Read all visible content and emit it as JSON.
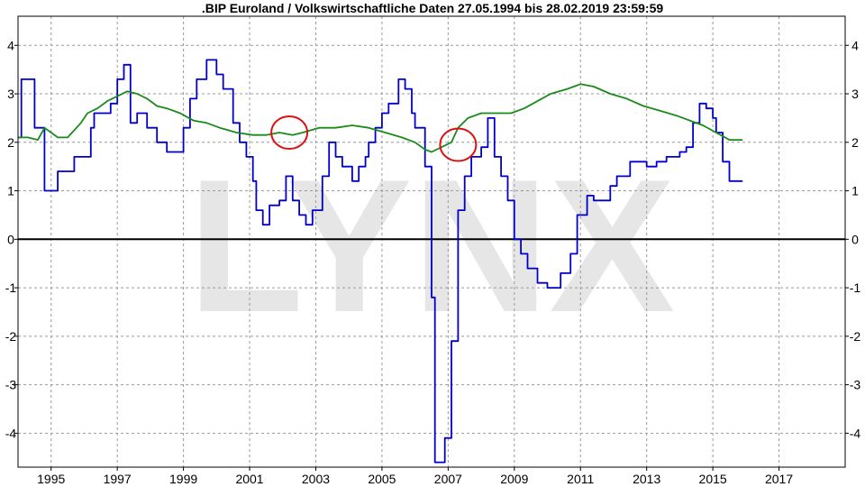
{
  "chart_data": {
    "type": "line",
    "title": ".BIP Euroland / Volkswirtschaftliche Daten 27.05.1994 bis 28.02.2019 23:59:59",
    "watermark": "LYNX",
    "xlabel": "",
    "ylabel": "",
    "xlim": [
      1994.0,
      2019.0
    ],
    "ylim": [
      -4.7,
      4.6
    ],
    "x_ticks": [
      1995,
      1997,
      1999,
      2001,
      2003,
      2005,
      2007,
      2009,
      2011,
      2013,
      2015,
      2017
    ],
    "y_ticks": [
      4,
      3,
      2,
      1,
      0,
      -1,
      -2,
      -3,
      -4
    ],
    "grid": true,
    "legend": "none",
    "zero_line": true,
    "series": [
      {
        "color": "#0000cc",
        "points": [
          [
            1994.0,
            2.1
          ],
          [
            1994.1,
            2.1
          ],
          [
            1994.1,
            3.3
          ],
          [
            1994.5,
            3.3
          ],
          [
            1994.5,
            2.3
          ],
          [
            1994.8,
            2.3
          ],
          [
            1994.8,
            1.0
          ],
          [
            1995.2,
            1.0
          ],
          [
            1995.2,
            1.4
          ],
          [
            1995.7,
            1.4
          ],
          [
            1995.7,
            1.7
          ],
          [
            1996.2,
            1.7
          ],
          [
            1996.2,
            2.3
          ],
          [
            1996.3,
            2.3
          ],
          [
            1996.3,
            2.6
          ],
          [
            1996.8,
            2.6
          ],
          [
            1996.8,
            2.8
          ],
          [
            1997.0,
            2.8
          ],
          [
            1997.0,
            3.3
          ],
          [
            1997.2,
            3.3
          ],
          [
            1997.2,
            3.6
          ],
          [
            1997.4,
            3.6
          ],
          [
            1997.4,
            2.4
          ],
          [
            1997.6,
            2.4
          ],
          [
            1997.6,
            2.6
          ],
          [
            1997.9,
            2.6
          ],
          [
            1997.9,
            2.3
          ],
          [
            1998.2,
            2.3
          ],
          [
            1998.2,
            2.0
          ],
          [
            1998.5,
            2.0
          ],
          [
            1998.5,
            1.8
          ],
          [
            1999.0,
            1.8
          ],
          [
            1999.0,
            2.3
          ],
          [
            1999.2,
            2.3
          ],
          [
            1999.2,
            2.9
          ],
          [
            1999.4,
            2.9
          ],
          [
            1999.4,
            3.3
          ],
          [
            1999.7,
            3.3
          ],
          [
            1999.7,
            3.7
          ],
          [
            2000.0,
            3.7
          ],
          [
            2000.0,
            3.4
          ],
          [
            2000.2,
            3.4
          ],
          [
            2000.2,
            3.1
          ],
          [
            2000.5,
            3.1
          ],
          [
            2000.5,
            2.4
          ],
          [
            2000.7,
            2.4
          ],
          [
            2000.7,
            2.0
          ],
          [
            2000.9,
            2.0
          ],
          [
            2000.9,
            1.7
          ],
          [
            2001.1,
            1.7
          ],
          [
            2001.1,
            1.2
          ],
          [
            2001.2,
            1.2
          ],
          [
            2001.2,
            0.6
          ],
          [
            2001.4,
            0.6
          ],
          [
            2001.4,
            0.3
          ],
          [
            2001.6,
            0.3
          ],
          [
            2001.6,
            0.7
          ],
          [
            2001.9,
            0.7
          ],
          [
            2001.9,
            0.8
          ],
          [
            2002.1,
            0.8
          ],
          [
            2002.1,
            1.3
          ],
          [
            2002.3,
            1.3
          ],
          [
            2002.3,
            0.8
          ],
          [
            2002.5,
            0.8
          ],
          [
            2002.5,
            0.5
          ],
          [
            2002.7,
            0.5
          ],
          [
            2002.7,
            0.3
          ],
          [
            2002.9,
            0.3
          ],
          [
            2002.9,
            0.6
          ],
          [
            2003.2,
            0.6
          ],
          [
            2003.2,
            1.3
          ],
          [
            2003.4,
            1.3
          ],
          [
            2003.4,
            2.0
          ],
          [
            2003.6,
            2.0
          ],
          [
            2003.6,
            1.7
          ],
          [
            2003.8,
            1.7
          ],
          [
            2003.8,
            1.5
          ],
          [
            2004.1,
            1.5
          ],
          [
            2004.1,
            1.2
          ],
          [
            2004.3,
            1.2
          ],
          [
            2004.3,
            1.5
          ],
          [
            2004.5,
            1.5
          ],
          [
            2004.5,
            1.7
          ],
          [
            2004.6,
            1.7
          ],
          [
            2004.6,
            2.0
          ],
          [
            2004.8,
            2.0
          ],
          [
            2004.8,
            2.3
          ],
          [
            2005.0,
            2.3
          ],
          [
            2005.0,
            2.6
          ],
          [
            2005.2,
            2.6
          ],
          [
            2005.2,
            2.8
          ],
          [
            2005.5,
            2.8
          ],
          [
            2005.5,
            3.3
          ],
          [
            2005.7,
            3.3
          ],
          [
            2005.7,
            3.1
          ],
          [
            2005.9,
            3.1
          ],
          [
            2005.9,
            2.6
          ],
          [
            2006.0,
            2.6
          ],
          [
            2006.0,
            2.3
          ],
          [
            2006.3,
            2.3
          ],
          [
            2006.3,
            1.5
          ],
          [
            2006.5,
            1.5
          ],
          [
            2006.5,
            -1.2
          ],
          [
            2006.6,
            -1.2
          ],
          [
            2006.6,
            -4.6
          ],
          [
            2006.9,
            -4.6
          ],
          [
            2006.9,
            -4.1
          ],
          [
            2007.1,
            -4.1
          ],
          [
            2007.1,
            -2.1
          ],
          [
            2007.3,
            -2.1
          ],
          [
            2007.3,
            0.6
          ],
          [
            2007.5,
            0.6
          ],
          [
            2007.5,
            1.3
          ],
          [
            2007.7,
            1.3
          ],
          [
            2007.7,
            1.7
          ],
          [
            2008.0,
            1.7
          ],
          [
            2008.0,
            1.9
          ],
          [
            2008.2,
            1.9
          ],
          [
            2008.2,
            2.5
          ],
          [
            2008.4,
            2.5
          ],
          [
            2008.4,
            1.7
          ],
          [
            2008.6,
            1.7
          ],
          [
            2008.6,
            1.3
          ],
          [
            2008.8,
            1.3
          ],
          [
            2008.8,
            0.8
          ],
          [
            2009.0,
            0.8
          ],
          [
            2009.0,
            0.0
          ],
          [
            2009.2,
            0.0
          ],
          [
            2009.2,
            -0.3
          ],
          [
            2009.4,
            -0.3
          ],
          [
            2009.4,
            -0.6
          ],
          [
            2009.7,
            -0.6
          ],
          [
            2009.7,
            -0.9
          ],
          [
            2010.0,
            -0.9
          ],
          [
            2010.0,
            -1.0
          ],
          [
            2010.4,
            -1.0
          ],
          [
            2010.4,
            -0.7
          ],
          [
            2010.7,
            -0.7
          ],
          [
            2010.7,
            -0.3
          ],
          [
            2010.9,
            -0.3
          ],
          [
            2010.9,
            0.5
          ],
          [
            2011.2,
            0.5
          ],
          [
            2011.2,
            0.9
          ],
          [
            2011.4,
            0.9
          ],
          [
            2011.4,
            0.8
          ],
          [
            2011.9,
            0.8
          ],
          [
            2011.9,
            1.1
          ],
          [
            2012.1,
            1.1
          ],
          [
            2012.1,
            1.3
          ],
          [
            2012.5,
            1.3
          ],
          [
            2012.5,
            1.6
          ],
          [
            2013.0,
            1.6
          ],
          [
            2013.0,
            1.5
          ],
          [
            2013.3,
            1.5
          ],
          [
            2013.3,
            1.6
          ],
          [
            2013.6,
            1.6
          ],
          [
            2013.6,
            1.7
          ],
          [
            2014.0,
            1.7
          ],
          [
            2014.0,
            1.8
          ],
          [
            2014.2,
            1.8
          ],
          [
            2014.2,
            1.9
          ],
          [
            2014.4,
            1.9
          ],
          [
            2014.4,
            2.4
          ],
          [
            2014.6,
            2.4
          ],
          [
            2014.6,
            2.8
          ],
          [
            2014.8,
            2.8
          ],
          [
            2014.8,
            2.7
          ],
          [
            2015.0,
            2.7
          ],
          [
            2015.0,
            2.5
          ],
          [
            2015.1,
            2.5
          ],
          [
            2015.1,
            2.2
          ],
          [
            2015.3,
            2.2
          ],
          [
            2015.3,
            1.6
          ],
          [
            2015.5,
            1.6
          ],
          [
            2015.5,
            1.2
          ],
          [
            2015.9,
            1.2
          ]
        ]
      },
      {
        "color": "#1a8a1a",
        "points": [
          [
            1994.0,
            2.1
          ],
          [
            1994.3,
            2.1
          ],
          [
            1994.6,
            2.05
          ],
          [
            1994.8,
            2.3
          ],
          [
            1995.2,
            2.1
          ],
          [
            1995.5,
            2.1
          ],
          [
            1995.9,
            2.4
          ],
          [
            1996.1,
            2.6
          ],
          [
            1996.4,
            2.7
          ],
          [
            1996.7,
            2.85
          ],
          [
            1997.0,
            2.95
          ],
          [
            1997.3,
            3.05
          ],
          [
            1997.6,
            3.0
          ],
          [
            1997.9,
            2.9
          ],
          [
            1998.2,
            2.75
          ],
          [
            1998.5,
            2.7
          ],
          [
            1998.9,
            2.6
          ],
          [
            1999.3,
            2.45
          ],
          [
            1999.7,
            2.4
          ],
          [
            2000.1,
            2.3
          ],
          [
            2000.6,
            2.2
          ],
          [
            2001.1,
            2.15
          ],
          [
            2001.5,
            2.15
          ],
          [
            2001.9,
            2.2
          ],
          [
            2002.3,
            2.15
          ],
          [
            2002.6,
            2.2
          ],
          [
            2003.1,
            2.3
          ],
          [
            2003.6,
            2.3
          ],
          [
            2004.1,
            2.35
          ],
          [
            2004.6,
            2.3
          ],
          [
            2005.1,
            2.2
          ],
          [
            2005.6,
            2.1
          ],
          [
            2006.0,
            2.0
          ],
          [
            2006.3,
            1.85
          ],
          [
            2006.5,
            1.8
          ],
          [
            2006.8,
            1.9
          ],
          [
            2007.1,
            2.0
          ],
          [
            2007.3,
            2.3
          ],
          [
            2007.6,
            2.5
          ],
          [
            2008.0,
            2.6
          ],
          [
            2008.5,
            2.6
          ],
          [
            2008.9,
            2.6
          ],
          [
            2009.3,
            2.7
          ],
          [
            2009.7,
            2.85
          ],
          [
            2010.1,
            3.0
          ],
          [
            2010.6,
            3.1
          ],
          [
            2011.0,
            3.2
          ],
          [
            2011.4,
            3.15
          ],
          [
            2011.9,
            3.0
          ],
          [
            2012.4,
            2.9
          ],
          [
            2012.9,
            2.75
          ],
          [
            2013.4,
            2.65
          ],
          [
            2013.9,
            2.55
          ],
          [
            2014.3,
            2.45
          ],
          [
            2014.7,
            2.35
          ],
          [
            2015.1,
            2.2
          ],
          [
            2015.5,
            2.05
          ],
          [
            2015.9,
            2.05
          ]
        ]
      }
    ],
    "annotations": [
      {
        "type": "circle",
        "color": "#dd1111",
        "x": 2002.2,
        "y": 2.2
      },
      {
        "type": "circle",
        "color": "#dd1111",
        "x": 2007.3,
        "y": 1.95
      }
    ]
  }
}
